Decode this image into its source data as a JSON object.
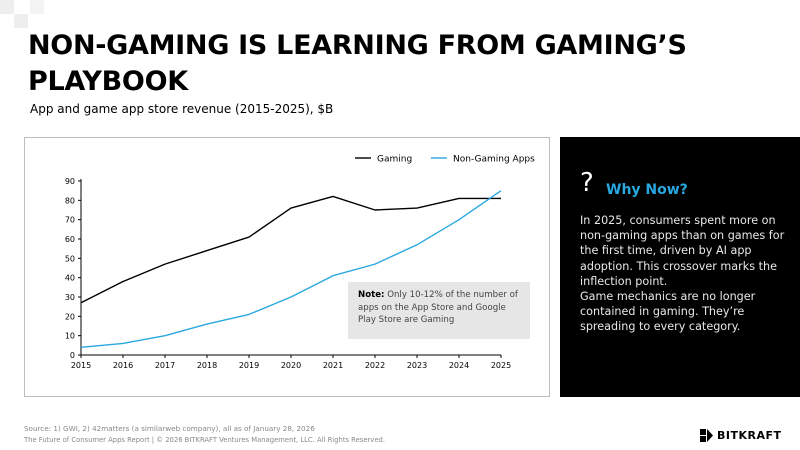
{
  "header": {
    "title": "NON-GAMING IS LEARNING FROM GAMING’S PLAYBOOK",
    "subtitle": "App and game app store revenue (2015-2025), $B"
  },
  "note": {
    "label": "Note:",
    "text": "Only 10-12% of the number of apps on the App Store and Google Play Store are Gaming"
  },
  "why_now": {
    "icon": "question-icon",
    "title": "Why Now?",
    "paragraphs": [
      "In 2025, consumers spent more on non-gaming apps than on games for the first time, driven by AI app adoption. This crossover marks the inflection point.",
      "Game mechanics are no longer contained in gaming. They’re spreading to every category."
    ]
  },
  "footer": {
    "source": "Source: 1) GWI, 2) 42matters (a similarweb company), all as of January 28, 2026",
    "copyright": "The Future of Consumer Apps Report | © 2026 BITKRAFT Ventures Management, LLC. All Rights Reserved.",
    "brand": "BITKRAFT"
  },
  "colors": {
    "gaming": "#000000",
    "non_gaming": "#29a8e0",
    "accent": "#29a8e0",
    "panel": "#000000"
  },
  "chart_data": {
    "type": "line",
    "x": [
      2015,
      2016,
      2017,
      2018,
      2019,
      2020,
      2021,
      2022,
      2023,
      2024,
      2025
    ],
    "ylim": [
      0,
      90
    ],
    "yticks": [
      0,
      10,
      20,
      30,
      40,
      50,
      60,
      70,
      80,
      90
    ],
    "grid": false,
    "legend_position": "top-right",
    "series": [
      {
        "name": "Gaming",
        "color": "#000000",
        "values": [
          27,
          38,
          47,
          54,
          61,
          76,
          82,
          75,
          76,
          81,
          81
        ]
      },
      {
        "name": "Non-Gaming Apps",
        "color": "#29a8e0",
        "values": [
          4,
          6,
          10,
          16,
          21,
          30,
          41,
          47,
          57,
          70,
          85
        ]
      }
    ]
  }
}
